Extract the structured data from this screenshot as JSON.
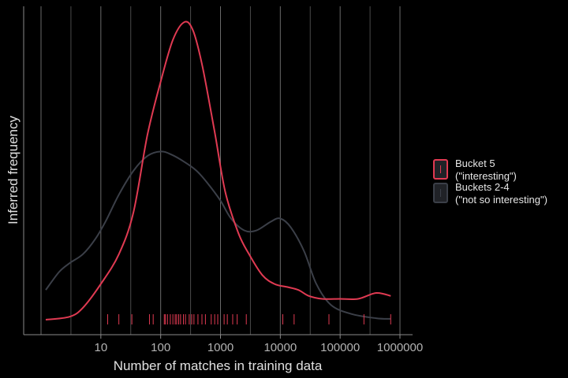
{
  "chart_data": {
    "type": "area",
    "xlabel": "Number of matches in training data",
    "ylabel": "Inferred frequency",
    "x_scale": "log10",
    "xlim": [
      1,
      1000000
    ],
    "x_tick_values": [
      10,
      100,
      1000,
      10000,
      100000,
      1000000
    ],
    "x_tick_labels": [
      "10",
      "100",
      "1000",
      "10000",
      "100000",
      "1000000"
    ],
    "ylim": [
      0,
      1
    ],
    "grid": "vertical",
    "legend_position": "right",
    "series": [
      {
        "name": "Bucket 5 (\"interesting\")",
        "legend_lines": [
          "Bucket 5",
          "(\"interesting\")"
        ],
        "color": "#e03a52",
        "fill": "#000000",
        "curve": [
          [
            1.2,
            0.0
          ],
          [
            3,
            0.01
          ],
          [
            5,
            0.04
          ],
          [
            10,
            0.12
          ],
          [
            20,
            0.22
          ],
          [
            35,
            0.36
          ],
          [
            60,
            0.62
          ],
          [
            100,
            0.8
          ],
          [
            160,
            0.94
          ],
          [
            250,
            1.0
          ],
          [
            350,
            0.97
          ],
          [
            500,
            0.85
          ],
          [
            800,
            0.63
          ],
          [
            1200,
            0.43
          ],
          [
            2000,
            0.29
          ],
          [
            3000,
            0.22
          ],
          [
            5000,
            0.15
          ],
          [
            8000,
            0.12
          ],
          [
            13000,
            0.11
          ],
          [
            20000,
            0.1
          ],
          [
            30000,
            0.08
          ],
          [
            50000,
            0.07
          ],
          [
            100000,
            0.07
          ],
          [
            200000,
            0.07
          ],
          [
            400000,
            0.09
          ],
          [
            700000,
            0.08
          ]
        ],
        "rug": [
          13,
          20,
          33,
          65,
          75,
          115,
          120,
          130,
          145,
          160,
          175,
          185,
          200,
          215,
          240,
          260,
          300,
          330,
          360,
          420,
          490,
          560,
          700,
          800,
          900,
          1150,
          1300,
          1600,
          1900,
          2700,
          11000,
          17000,
          65000,
          250000,
          700000
        ]
      },
      {
        "name": "Buckets 2-4 (\"not so interesting\")",
        "legend_lines": [
          "Buckets 2-4",
          "(\"not so interesting\")"
        ],
        "color": "#3b3f48",
        "fill": "#000000",
        "curve": [
          [
            1.2,
            0.1
          ],
          [
            2,
            0.16
          ],
          [
            3,
            0.19
          ],
          [
            5,
            0.22
          ],
          [
            8,
            0.27
          ],
          [
            12,
            0.33
          ],
          [
            20,
            0.42
          ],
          [
            35,
            0.5
          ],
          [
            60,
            0.55
          ],
          [
            100,
            0.565
          ],
          [
            150,
            0.555
          ],
          [
            250,
            0.53
          ],
          [
            400,
            0.5
          ],
          [
            600,
            0.46
          ],
          [
            1000,
            0.4
          ],
          [
            1500,
            0.34
          ],
          [
            2500,
            0.3
          ],
          [
            4000,
            0.3
          ],
          [
            7000,
            0.33
          ],
          [
            10000,
            0.34
          ],
          [
            15000,
            0.31
          ],
          [
            25000,
            0.23
          ],
          [
            40000,
            0.12
          ],
          [
            70000,
            0.05
          ],
          [
            150000,
            0.02
          ],
          [
            400000,
            0.005
          ],
          [
            700000,
            0.003
          ]
        ]
      }
    ]
  }
}
